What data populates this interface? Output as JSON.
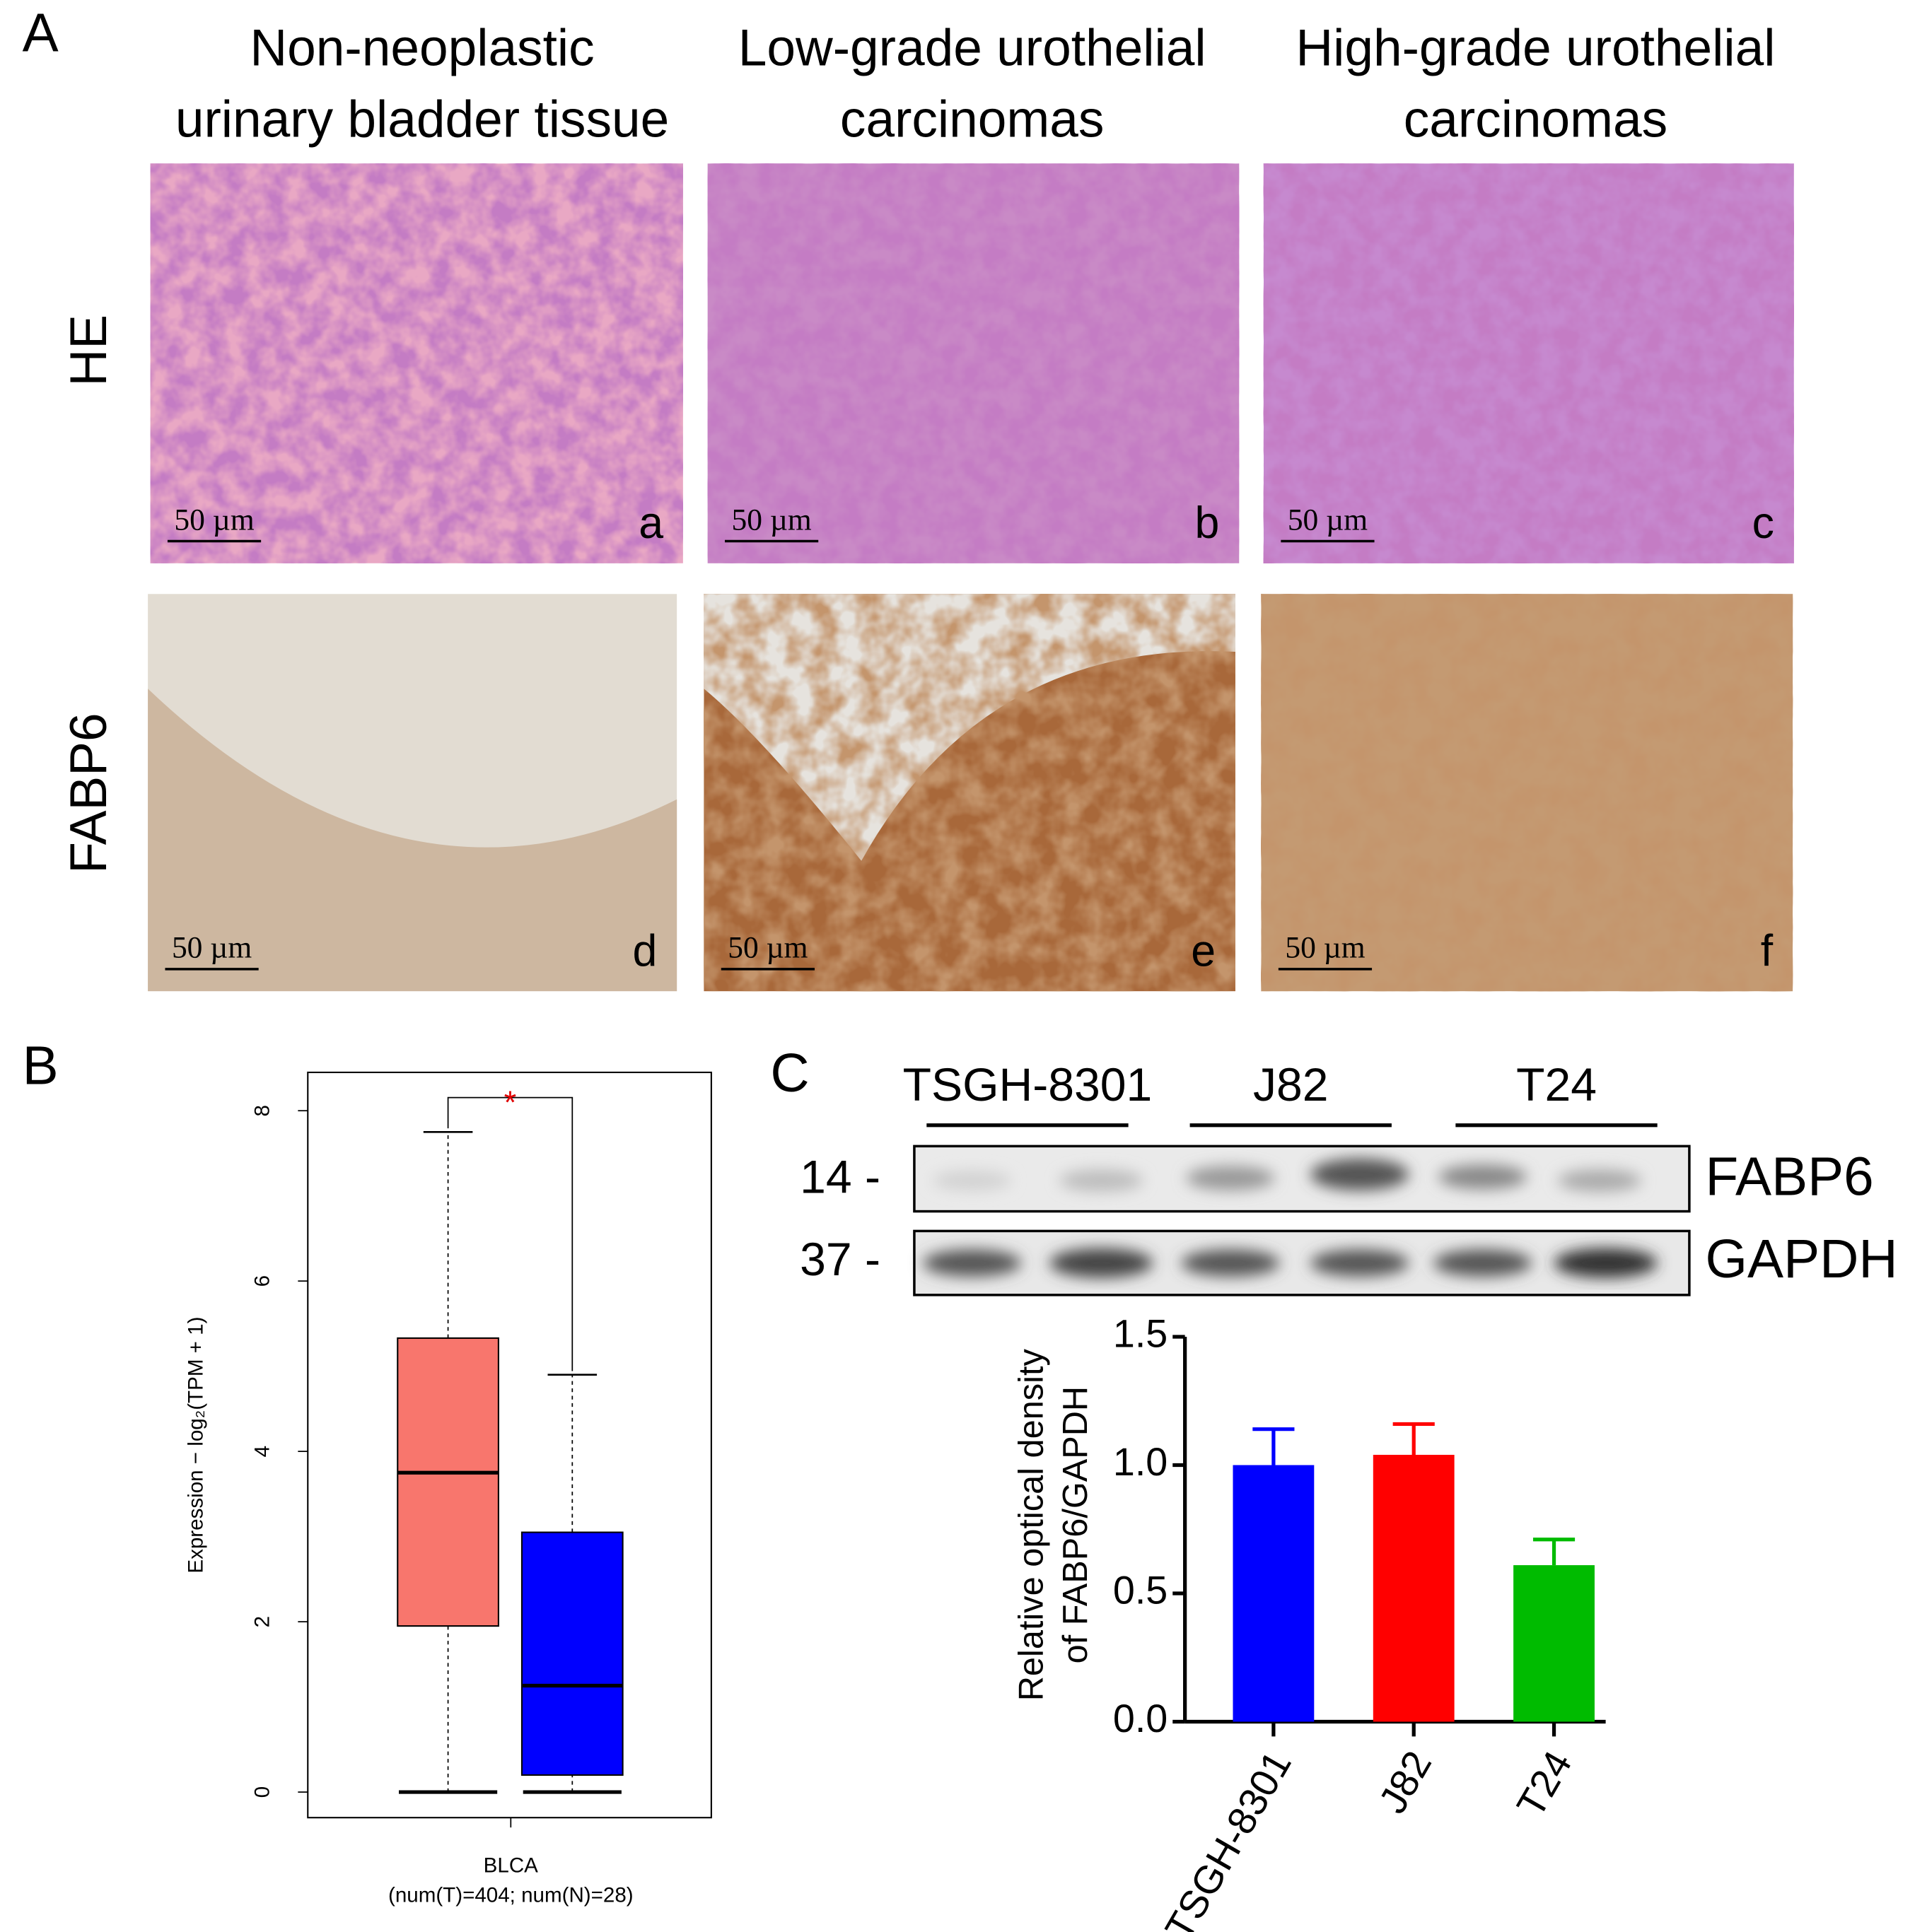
{
  "panel_a": {
    "letter": "A",
    "columns": [
      [
        "Non-neoplastic",
        "urinary bladder tissue"
      ],
      [
        "Low-grade urothelial",
        "carcinomas"
      ],
      [
        "High-grade urothelial",
        "carcinomas"
      ]
    ],
    "rows": [
      "HE",
      "FABP6"
    ],
    "image_labels": [
      "a",
      "b",
      "c",
      "d",
      "e",
      "f"
    ],
    "scale_bar": "50 µm"
  },
  "panel_b": {
    "letter": "B"
  },
  "panel_c": {
    "letter": "C",
    "lanes": [
      "TSGH-8301",
      "J82",
      "T24"
    ],
    "markers": [
      "14 -",
      "37 -"
    ],
    "bands": [
      "FABP6",
      "GAPDH"
    ]
  },
  "chart_data": [
    {
      "type": "box",
      "ylabel": "Expression − log₂(TPM + 1)",
      "categories": [
        "BLCA"
      ],
      "xlabel": "(num(T)=404; num(N)=28)",
      "annotation": "*",
      "series": [
        {
          "color": "#f8766d",
          "min": 0,
          "q1": 1.95,
          "median": 3.75,
          "q3": 5.33,
          "max": 7.75
        },
        {
          "color": "#0000ff",
          "min": 0,
          "q1": 0.2,
          "median": 1.25,
          "q3": 3.05,
          "max": 4.9
        }
      ],
      "ylim": [
        -0.3,
        8.45
      ],
      "yticks": [
        0,
        2,
        4,
        6,
        8
      ]
    },
    {
      "type": "bar",
      "ylabel": [
        "Relative optical density",
        "of FABP6/GAPDH"
      ],
      "categories": [
        "TSGH-8301",
        "J82",
        "T24"
      ],
      "values": [
        1.0,
        1.04,
        0.61
      ],
      "errors": [
        0.14,
        0.12,
        0.1
      ],
      "colors": [
        "#0000ff",
        "#ff0000",
        "#00bb00"
      ],
      "ylim": [
        0,
        1.5
      ],
      "yticks": [
        {
          "value": 0,
          "label": "0.0"
        },
        {
          "value": 0.5,
          "label": "0.5"
        },
        {
          "value": 1,
          "label": "1.0"
        },
        {
          "value": 1.5,
          "label": "1.5"
        }
      ]
    }
  ]
}
